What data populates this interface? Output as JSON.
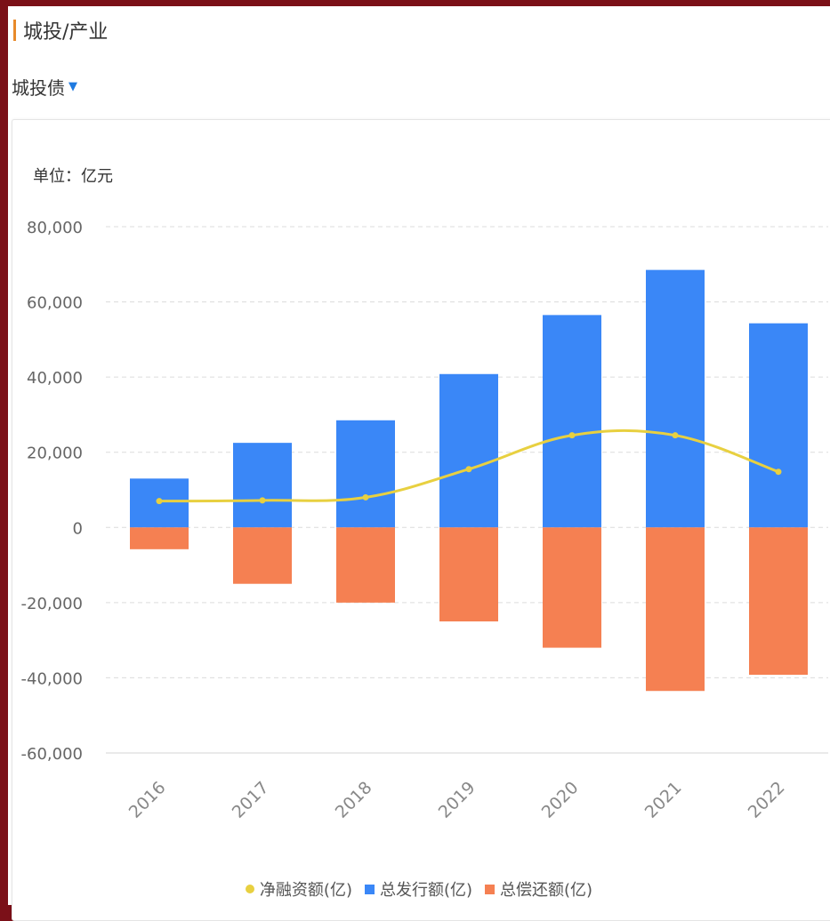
{
  "header": {
    "title": "城投/产业"
  },
  "selector": {
    "label": "城投债",
    "caret": "▼"
  },
  "chart_data": {
    "type": "bar",
    "unit_label": "单位：亿元",
    "categories": [
      "2016",
      "2017",
      "2018",
      "2019",
      "2020",
      "2021",
      "2022"
    ],
    "series": [
      {
        "name": "总发行额(亿)",
        "type": "bar",
        "color": "#3a87f7",
        "values": [
          13000,
          22500,
          28500,
          40800,
          56500,
          68500,
          54300
        ]
      },
      {
        "name": "总偿还额(亿)",
        "type": "bar",
        "color": "#f58052",
        "values": [
          -5800,
          -15000,
          -20000,
          -25000,
          -32000,
          -43500,
          -39200
        ]
      },
      {
        "name": "净融资额(亿)",
        "type": "line",
        "color": "#e8d040",
        "values": [
          7000,
          7200,
          8000,
          15500,
          24500,
          24500,
          14800
        ]
      }
    ],
    "y_ticks": [
      "80,000",
      "60,000",
      "40,000",
      "20,000",
      "0",
      "-20,000",
      "-40,000",
      "-60,000"
    ],
    "ylim": [
      -60000,
      80000
    ],
    "grid": true,
    "legend_position": "bottom-center"
  }
}
